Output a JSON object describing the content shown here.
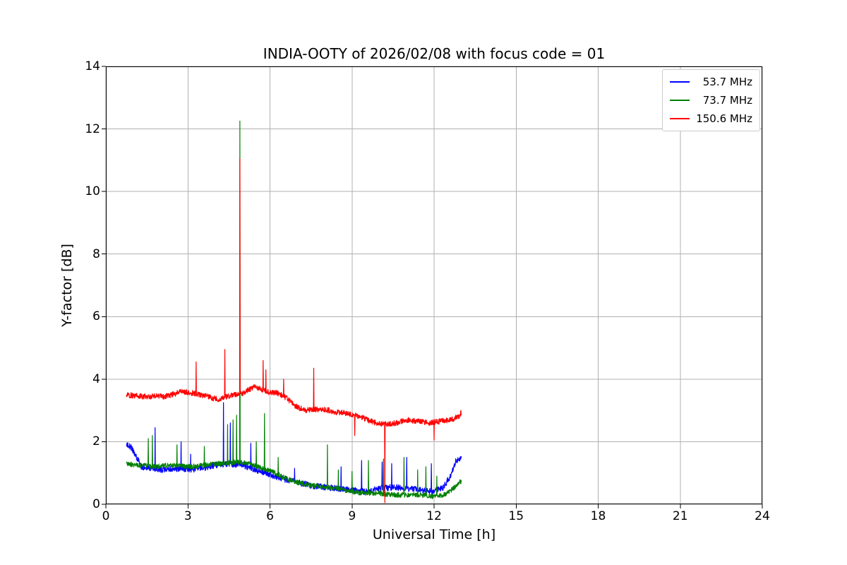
{
  "chart_data": {
    "type": "line",
    "title": "INDIA-OOTY of 2026/02/08 with focus code = 01",
    "xlabel": "Universal Time [h]",
    "ylabel": "Y-factor [dB]",
    "xlim": [
      0,
      24
    ],
    "ylim": [
      0,
      14
    ],
    "xticks": [
      0,
      3,
      6,
      9,
      12,
      15,
      18,
      21,
      24
    ],
    "yticks": [
      0,
      2,
      4,
      6,
      8,
      10,
      12,
      14
    ],
    "grid": true,
    "grid_color": "#b0b0b0",
    "axis_color": "#000000",
    "background_color": "#ffffff",
    "legend_position": "upper right",
    "x_range": [
      0.75,
      13.0
    ],
    "series": [
      {
        "name": "53.7 MHz",
        "color": "#0000ff",
        "noise": 0.1,
        "anchors": [
          [
            0.75,
            1.95
          ],
          [
            0.95,
            1.8
          ],
          [
            1.1,
            1.55
          ],
          [
            1.3,
            1.2
          ],
          [
            1.7,
            1.15
          ],
          [
            2.1,
            1.1
          ],
          [
            2.5,
            1.15
          ],
          [
            3.0,
            1.1
          ],
          [
            3.5,
            1.15
          ],
          [
            4.0,
            1.25
          ],
          [
            4.5,
            1.3
          ],
          [
            5.0,
            1.25
          ],
          [
            5.5,
            1.1
          ],
          [
            6.0,
            0.95
          ],
          [
            6.5,
            0.8
          ],
          [
            7.0,
            0.7
          ],
          [
            7.5,
            0.6
          ],
          [
            8.0,
            0.55
          ],
          [
            8.5,
            0.5
          ],
          [
            9.0,
            0.45
          ],
          [
            9.5,
            0.4
          ],
          [
            10.0,
            0.5
          ],
          [
            10.5,
            0.55
          ],
          [
            11.0,
            0.5
          ],
          [
            11.5,
            0.45
          ],
          [
            11.9,
            0.4
          ],
          [
            12.3,
            0.5
          ],
          [
            12.6,
            0.9
          ],
          [
            12.8,
            1.4
          ],
          [
            13.0,
            1.45
          ]
        ],
        "spikes": [
          [
            1.8,
            2.45
          ],
          [
            2.75,
            2.0
          ],
          [
            3.1,
            1.6
          ],
          [
            4.3,
            3.25
          ],
          [
            4.55,
            2.6
          ],
          [
            5.3,
            1.95
          ],
          [
            6.9,
            1.15
          ],
          [
            8.6,
            1.2
          ],
          [
            9.35,
            1.4
          ],
          [
            10.1,
            1.35
          ],
          [
            10.45,
            1.3
          ],
          [
            11.0,
            1.5
          ],
          [
            11.9,
            1.3
          ]
        ]
      },
      {
        "name": "73.7 MHz",
        "color": "#008000",
        "noise": 0.08,
        "anchors": [
          [
            0.75,
            1.3
          ],
          [
            1.2,
            1.25
          ],
          [
            1.8,
            1.2
          ],
          [
            2.3,
            1.25
          ],
          [
            3.0,
            1.2
          ],
          [
            3.6,
            1.25
          ],
          [
            4.2,
            1.3
          ],
          [
            4.8,
            1.35
          ],
          [
            5.2,
            1.3
          ],
          [
            5.7,
            1.15
          ],
          [
            6.1,
            1.05
          ],
          [
            6.5,
            0.85
          ],
          [
            7.0,
            0.7
          ],
          [
            7.5,
            0.6
          ],
          [
            8.0,
            0.55
          ],
          [
            8.5,
            0.5
          ],
          [
            9.0,
            0.4
          ],
          [
            9.5,
            0.35
          ],
          [
            10.0,
            0.35
          ],
          [
            10.5,
            0.3
          ],
          [
            11.0,
            0.3
          ],
          [
            11.5,
            0.3
          ],
          [
            12.0,
            0.25
          ],
          [
            12.4,
            0.3
          ],
          [
            12.7,
            0.5
          ],
          [
            13.0,
            0.75
          ]
        ],
        "spikes": [
          [
            1.55,
            2.1
          ],
          [
            1.7,
            2.2
          ],
          [
            2.6,
            1.9
          ],
          [
            3.6,
            1.85
          ],
          [
            4.45,
            2.55
          ],
          [
            4.65,
            2.7
          ],
          [
            4.78,
            2.85
          ],
          [
            4.9,
            12.25
          ],
          [
            5.5,
            2.0
          ],
          [
            5.8,
            2.9
          ],
          [
            6.3,
            1.5
          ],
          [
            8.1,
            1.9
          ],
          [
            8.5,
            1.1
          ],
          [
            9.0,
            1.05
          ],
          [
            9.6,
            1.4
          ],
          [
            10.15,
            1.45
          ],
          [
            10.9,
            1.5
          ],
          [
            11.4,
            1.1
          ],
          [
            11.7,
            1.2
          ],
          [
            12.1,
            0.9
          ]
        ]
      },
      {
        "name": "150.6 MHz",
        "color": "#ff0000",
        "noise": 0.09,
        "anchors": [
          [
            0.75,
            3.5
          ],
          [
            1.2,
            3.45
          ],
          [
            1.7,
            3.45
          ],
          [
            2.2,
            3.45
          ],
          [
            2.8,
            3.6
          ],
          [
            3.2,
            3.55
          ],
          [
            3.7,
            3.45
          ],
          [
            4.1,
            3.35
          ],
          [
            4.6,
            3.5
          ],
          [
            5.0,
            3.55
          ],
          [
            5.4,
            3.75
          ],
          [
            5.6,
            3.7
          ],
          [
            5.9,
            3.6
          ],
          [
            6.3,
            3.55
          ],
          [
            6.6,
            3.4
          ],
          [
            7.0,
            3.1
          ],
          [
            7.3,
            3.0
          ],
          [
            7.9,
            3.05
          ],
          [
            8.4,
            2.95
          ],
          [
            8.9,
            2.9
          ],
          [
            9.3,
            2.8
          ],
          [
            9.7,
            2.65
          ],
          [
            10.1,
            2.55
          ],
          [
            10.6,
            2.6
          ],
          [
            11.0,
            2.7
          ],
          [
            11.4,
            2.65
          ],
          [
            11.8,
            2.6
          ],
          [
            12.2,
            2.65
          ],
          [
            12.6,
            2.7
          ],
          [
            12.9,
            2.8
          ],
          [
            13.0,
            2.95
          ]
        ],
        "spikes": [
          [
            3.3,
            4.55
          ],
          [
            4.35,
            4.95
          ],
          [
            4.9,
            11.05
          ],
          [
            5.75,
            4.6
          ],
          [
            5.85,
            4.3
          ],
          [
            6.5,
            4.0
          ],
          [
            7.6,
            4.35
          ],
          [
            9.1,
            2.2
          ],
          [
            10.2,
            0.05
          ],
          [
            12.0,
            2.05
          ]
        ]
      }
    ]
  }
}
